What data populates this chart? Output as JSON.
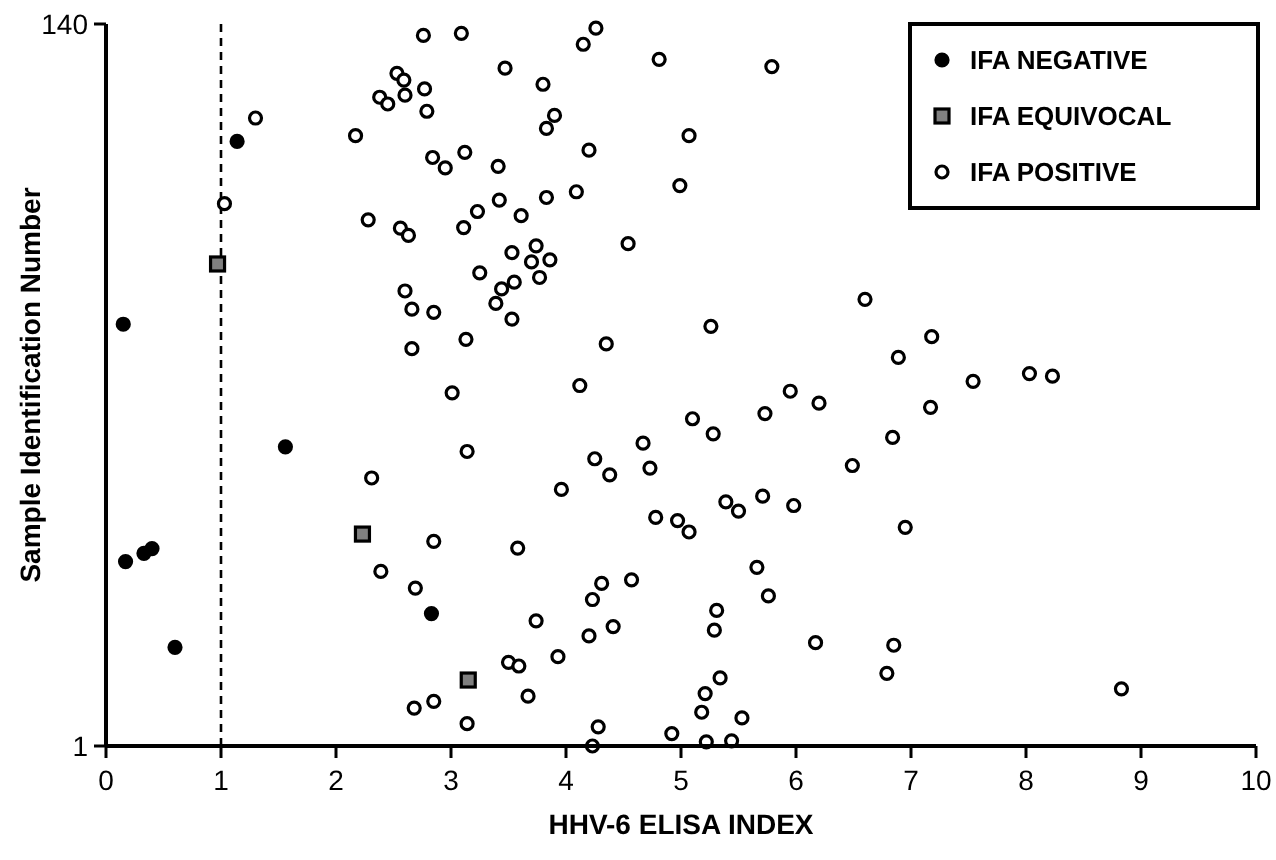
{
  "chart_data": {
    "type": "scatter",
    "xlabel": "HHV-6 ELISA INDEX",
    "ylabel": "Sample Identification Number",
    "xlim": [
      0,
      10
    ],
    "xticks": [
      0,
      1,
      2,
      3,
      4,
      5,
      6,
      7,
      8,
      9,
      10
    ],
    "ylim": [
      1,
      140
    ],
    "yticks": [
      1,
      140
    ],
    "grid": false,
    "legend": "top right",
    "ref_lines": [
      {
        "axis": "x",
        "value": 1,
        "line_style": "dashed",
        "color": "#000000"
      }
    ],
    "series": [
      {
        "name": "IFA NEGATIVE",
        "color": "#000000",
        "marker": "circle",
        "x": [
          1.14,
          0.15,
          1.56,
          0.17,
          0.33,
          0.4,
          0.6,
          2.83
        ],
        "values": [
          117.4,
          82.2,
          58.6,
          36.5,
          38.1,
          39.0,
          20.0,
          26.5
        ]
      },
      {
        "name": "IFA EQUIVOCAL",
        "color": "#808080",
        "marker": "square",
        "x": [
          0.97,
          2.23,
          3.15
        ],
        "values": [
          93.8,
          41.8,
          13.7
        ]
      },
      {
        "name": "IFA POSITIVE",
        "color": "#ffffff",
        "marker": "circle",
        "x": [
          1.3,
          1.03,
          2.76,
          3.09,
          2.53,
          2.59,
          2.38,
          2.45,
          2.6,
          2.77,
          2.79,
          2.17,
          2.84,
          2.95,
          3.12,
          2.28,
          2.56,
          2.63,
          3.11,
          2.6,
          2.66,
          2.85,
          2.66,
          3.13,
          3.47,
          3.8,
          4.15,
          4.26,
          4.81,
          3.9,
          3.83,
          5.07,
          4.2,
          3.41,
          4.99,
          4.09,
          3.83,
          3.42,
          3.61,
          4.54,
          3.53,
          3.74,
          3.7,
          3.86,
          3.77,
          3.55,
          3.44,
          3.39,
          3.53,
          3.25,
          3.23,
          4.35,
          5.26,
          4.12,
          3.01,
          5.79,
          2.31,
          3.14,
          2.85,
          2.39,
          2.69,
          2.68,
          2.85,
          3.14,
          3.58,
          4.25,
          4.38,
          3.96,
          4.67,
          4.73,
          5.1,
          5.28,
          4.78,
          4.97,
          5.07,
          5.39,
          4.31,
          4.23,
          4.57,
          3.74,
          4.41,
          4.2,
          3.5,
          3.59,
          3.93,
          3.67,
          4.28,
          4.23,
          5.31,
          5.29,
          5.34,
          5.21,
          5.18,
          4.92,
          5.22,
          5.44,
          6.6,
          7.18,
          6.89,
          7.54,
          8.03,
          8.23,
          5.95,
          6.2,
          5.73,
          7.17,
          6.84,
          6.49,
          5.5,
          5.71,
          5.98,
          6.95,
          5.66,
          5.76,
          6.17,
          6.85,
          6.79,
          8.83,
          5.53
        ],
        "values": [
          121.9,
          105.4,
          137.8,
          138.2,
          130.5,
          129.2,
          125.9,
          124.6,
          126.3,
          127.5,
          123.2,
          118.5,
          114.3,
          112.3,
          115.3,
          102.3,
          100.7,
          99.3,
          100.8,
          88.6,
          85.1,
          84.5,
          77.5,
          79.3,
          131.5,
          128.4,
          136.1,
          139.2,
          133.2,
          122.4,
          119.9,
          118.5,
          115.7,
          112.6,
          108.9,
          107.7,
          106.6,
          106.1,
          103.1,
          97.7,
          96.0,
          97.3,
          94.2,
          94.6,
          91.2,
          90.3,
          89.0,
          86.2,
          83.2,
          92.1,
          103.9,
          78.4,
          81.8,
          70.4,
          69.0,
          131.8,
          52.6,
          57.7,
          40.4,
          34.6,
          31.4,
          8.3,
          9.6,
          5.3,
          39.1,
          56.3,
          53.2,
          50.4,
          59.3,
          54.5,
          64.0,
          61.1,
          45.0,
          44.4,
          42.2,
          48.0,
          32.3,
          29.2,
          33.0,
          25.1,
          24.0,
          22.2,
          17.1,
          16.4,
          18.2,
          10.6,
          4.7,
          1,
          27.1,
          23.3,
          14.1,
          11.1,
          7.5,
          3.4,
          1.8,
          2.0,
          87.0,
          79.8,
          75.8,
          71.2,
          72.7,
          72.2,
          69.3,
          67.0,
          65.0,
          66.2,
          60.4,
          55.0,
          46.2,
          49.1,
          47.3,
          43.1,
          35.4,
          29.9,
          20.9,
          20.4,
          15.0,
          12.0,
          6.4
        ]
      }
    ]
  }
}
